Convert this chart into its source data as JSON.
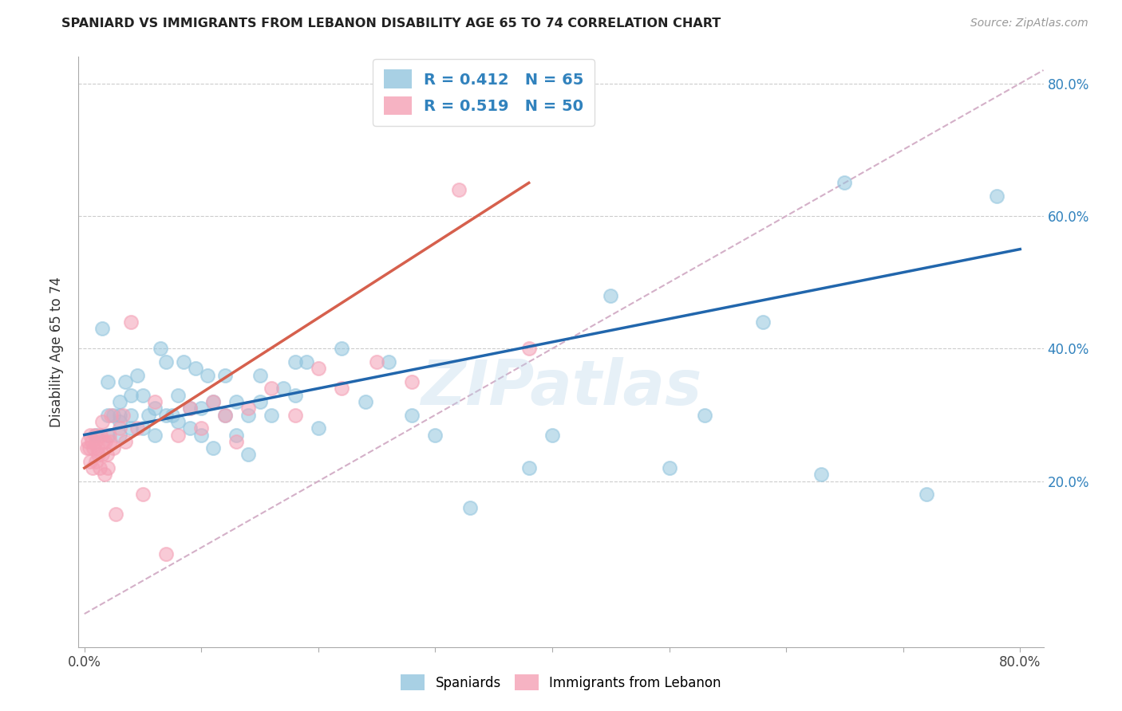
{
  "title": "SPANIARD VS IMMIGRANTS FROM LEBANON DISABILITY AGE 65 TO 74 CORRELATION CHART",
  "source": "Source: ZipAtlas.com",
  "ylabel": "Disability Age 65 to 74",
  "xlim": [
    -0.005,
    0.82
  ],
  "ylim": [
    -0.05,
    0.84
  ],
  "xtick_positions": [
    0.0,
    0.1,
    0.2,
    0.3,
    0.4,
    0.5,
    0.6,
    0.7,
    0.8
  ],
  "xticklabels": [
    "0.0%",
    "",
    "",
    "",
    "",
    "",
    "",
    "",
    "80.0%"
  ],
  "ytick_positions": [
    0.2,
    0.4,
    0.6,
    0.8
  ],
  "yticklabels_right": [
    "20.0%",
    "40.0%",
    "60.0%",
    "80.0%"
  ],
  "blue_R": "0.412",
  "blue_N": "65",
  "pink_R": "0.519",
  "pink_N": "50",
  "legend_labels": [
    "Spaniards",
    "Immigrants from Lebanon"
  ],
  "blue_color": "#92c5de",
  "pink_color": "#f4a0b5",
  "blue_line_color": "#2166ac",
  "pink_line_color": "#d6604d",
  "diag_line_color": "#d4b0c8",
  "watermark": "ZIPatlas",
  "blue_scatter_x": [
    0.01,
    0.015,
    0.02,
    0.02,
    0.02,
    0.025,
    0.03,
    0.03,
    0.03,
    0.03,
    0.035,
    0.04,
    0.04,
    0.04,
    0.045,
    0.05,
    0.05,
    0.055,
    0.06,
    0.06,
    0.065,
    0.07,
    0.07,
    0.075,
    0.08,
    0.08,
    0.085,
    0.09,
    0.09,
    0.095,
    0.1,
    0.1,
    0.105,
    0.11,
    0.11,
    0.12,
    0.12,
    0.13,
    0.13,
    0.14,
    0.14,
    0.15,
    0.15,
    0.16,
    0.17,
    0.18,
    0.18,
    0.19,
    0.2,
    0.22,
    0.24,
    0.26,
    0.28,
    0.3,
    0.33,
    0.38,
    0.4,
    0.45,
    0.5,
    0.53,
    0.58,
    0.63,
    0.65,
    0.72,
    0.78
  ],
  "blue_scatter_y": [
    0.27,
    0.43,
    0.27,
    0.3,
    0.35,
    0.3,
    0.27,
    0.29,
    0.3,
    0.32,
    0.35,
    0.28,
    0.3,
    0.33,
    0.36,
    0.28,
    0.33,
    0.3,
    0.27,
    0.31,
    0.4,
    0.3,
    0.38,
    0.3,
    0.29,
    0.33,
    0.38,
    0.28,
    0.31,
    0.37,
    0.27,
    0.31,
    0.36,
    0.25,
    0.32,
    0.3,
    0.36,
    0.27,
    0.32,
    0.24,
    0.3,
    0.32,
    0.36,
    0.3,
    0.34,
    0.33,
    0.38,
    0.38,
    0.28,
    0.4,
    0.32,
    0.38,
    0.3,
    0.27,
    0.16,
    0.22,
    0.27,
    0.48,
    0.22,
    0.3,
    0.44,
    0.21,
    0.65,
    0.18,
    0.63
  ],
  "pink_scatter_x": [
    0.002,
    0.003,
    0.004,
    0.005,
    0.005,
    0.006,
    0.007,
    0.008,
    0.009,
    0.01,
    0.01,
    0.011,
    0.012,
    0.013,
    0.014,
    0.015,
    0.015,
    0.016,
    0.017,
    0.018,
    0.019,
    0.02,
    0.021,
    0.022,
    0.023,
    0.025,
    0.027,
    0.03,
    0.033,
    0.035,
    0.04,
    0.045,
    0.05,
    0.06,
    0.07,
    0.08,
    0.09,
    0.1,
    0.11,
    0.12,
    0.13,
    0.14,
    0.16,
    0.18,
    0.2,
    0.22,
    0.25,
    0.28,
    0.32,
    0.38
  ],
  "pink_scatter_y": [
    0.25,
    0.26,
    0.25,
    0.27,
    0.23,
    0.26,
    0.22,
    0.25,
    0.27,
    0.23,
    0.26,
    0.25,
    0.24,
    0.22,
    0.27,
    0.24,
    0.29,
    0.26,
    0.21,
    0.26,
    0.24,
    0.22,
    0.27,
    0.26,
    0.3,
    0.25,
    0.15,
    0.28,
    0.3,
    0.26,
    0.44,
    0.28,
    0.18,
    0.32,
    0.09,
    0.27,
    0.31,
    0.28,
    0.32,
    0.3,
    0.26,
    0.31,
    0.34,
    0.3,
    0.37,
    0.34,
    0.38,
    0.35,
    0.64,
    0.4
  ],
  "blue_line_x": [
    0.0,
    0.8
  ],
  "blue_line_y": [
    0.27,
    0.55
  ],
  "pink_line_x": [
    0.0,
    0.38
  ],
  "pink_line_y": [
    0.22,
    0.65
  ]
}
